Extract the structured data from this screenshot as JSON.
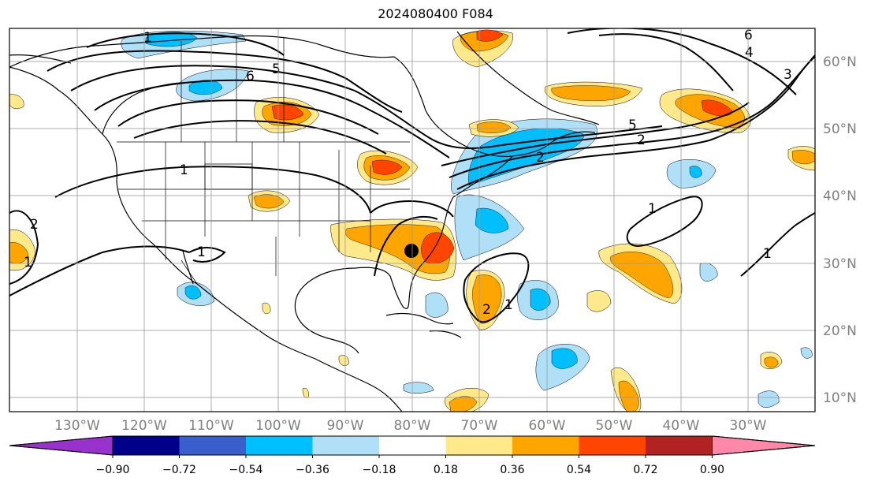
{
  "title": "2024080400 F084",
  "map": {
    "lat_labels": [
      "60°N",
      "50°N",
      "40°N",
      "30°N",
      "20°N",
      "10°N"
    ],
    "lon_labels": [
      "130°W",
      "120°W",
      "110°W",
      "100°W",
      "90°W",
      "80°W",
      "70°W",
      "60°W",
      "50°W",
      "40°W",
      "30°W"
    ],
    "marker": {
      "lon": -80,
      "lat": 32
    }
  },
  "colorbar": {
    "ticks": [
      "−0.90",
      "−0.72",
      "−0.54",
      "−0.36",
      "−0.18",
      "0.18",
      "0.36",
      "0.54",
      "0.72",
      "0.90"
    ],
    "colors": [
      "#9932cc",
      "#00008b",
      "#3a5fcd",
      "#00bfff",
      "#b0e0f8",
      "#ffffff",
      "#ffe98a",
      "#ffa500",
      "#ff4500",
      "#b22222",
      "#ff88aa"
    ]
  },
  "contour_labels": [
    "1",
    "6",
    "5",
    "1",
    "2",
    "5",
    "2",
    "4",
    "3",
    "6",
    "1",
    "1",
    "1",
    "1",
    "1",
    "2",
    "2"
  ],
  "palette": {
    "blue_light": "#b0e0f8",
    "blue": "#00bfff",
    "yellow": "#ffe98a",
    "orange": "#ffa500",
    "red": "#ff4500"
  }
}
